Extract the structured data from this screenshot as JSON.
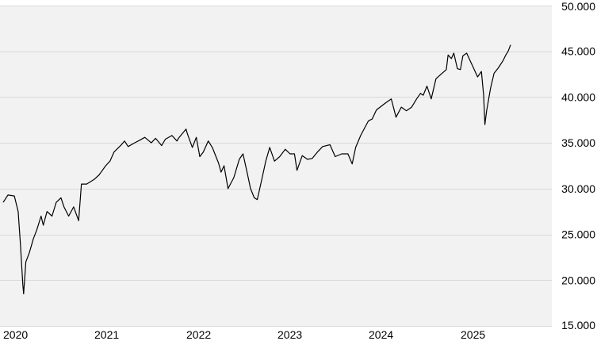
{
  "chart_data": {
    "type": "line",
    "title": "",
    "xlabel": "",
    "ylabel": "",
    "x_tick_labels": [
      "2020",
      "2021",
      "2022",
      "2023",
      "2024",
      "2025"
    ],
    "y_tick_labels": [
      "15.000",
      "20.000",
      "25.000",
      "30.000",
      "35.000",
      "40.000",
      "45.000",
      "50.000"
    ],
    "y_ticks": [
      15000,
      20000,
      25000,
      30000,
      35000,
      40000,
      45000,
      50000
    ],
    "ylim": [
      15000,
      50000
    ],
    "xlim": [
      "2020-01-01",
      "2025-12-31"
    ],
    "grid": "horizontal",
    "legend": "none",
    "colors": {
      "line": "#000000",
      "plot_bg": "#f2f2f2",
      "grid": "#d9d9d9",
      "tick_text": "#000000"
    },
    "series": [
      {
        "x": [
          "2020-01-01",
          "2020-01-20",
          "2020-02-15",
          "2020-03-01",
          "2020-03-10",
          "2020-03-20",
          "2020-03-23",
          "2020-04-01",
          "2020-04-15",
          "2020-05-01",
          "2020-05-15",
          "2020-06-01",
          "2020-06-10",
          "2020-06-25",
          "2020-07-15",
          "2020-08-01",
          "2020-08-20",
          "2020-09-01",
          "2020-09-20",
          "2020-10-10",
          "2020-10-30",
          "2020-11-10",
          "2020-12-01",
          "2020-12-31",
          "2021-01-20",
          "2021-02-15",
          "2021-03-04",
          "2021-03-20",
          "2021-04-15",
          "2021-05-01",
          "2021-05-15",
          "2021-06-10",
          "2021-07-01",
          "2021-07-20",
          "2021-08-15",
          "2021-09-01",
          "2021-09-25",
          "2021-10-10",
          "2021-11-05",
          "2021-11-25",
          "2021-12-01",
          "2021-12-31",
          "2022-01-05",
          "2022-01-25",
          "2022-02-10",
          "2022-02-24",
          "2022-03-10",
          "2022-03-30",
          "2022-04-15",
          "2022-05-10",
          "2022-05-20",
          "2022-06-01",
          "2022-06-17",
          "2022-07-10",
          "2022-08-01",
          "2022-08-16",
          "2022-09-01",
          "2022-09-15",
          "2022-09-30",
          "2022-10-12",
          "2022-10-30",
          "2022-11-15",
          "2022-12-01",
          "2022-12-20",
          "2023-01-10",
          "2023-02-01",
          "2023-02-20",
          "2023-03-10",
          "2023-03-20",
          "2023-04-10",
          "2023-05-01",
          "2023-05-20",
          "2023-06-10",
          "2023-07-01",
          "2023-07-30",
          "2023-08-20",
          "2023-09-15",
          "2023-10-10",
          "2023-10-27",
          "2023-11-10",
          "2023-11-30",
          "2023-12-31",
          "2024-01-15",
          "2024-02-01",
          "2024-02-20",
          "2024-03-10",
          "2024-03-31",
          "2024-04-19",
          "2024-05-10",
          "2024-05-30",
          "2024-06-20",
          "2024-07-10",
          "2024-07-25",
          "2024-08-05",
          "2024-08-20",
          "2024-09-06",
          "2024-09-25",
          "2024-10-15",
          "2024-11-05",
          "2024-11-12",
          "2024-11-25",
          "2024-12-05",
          "2024-12-19",
          "2024-12-31",
          "2025-01-10",
          "2025-01-25",
          "2025-02-18",
          "2025-03-10",
          "2025-03-25",
          "2025-04-03",
          "2025-04-08",
          "2025-04-15",
          "2025-05-01",
          "2025-05-15",
          "2025-06-01",
          "2025-06-20",
          "2025-07-01",
          "2025-07-10",
          "2025-07-20"
        ],
        "y": [
          28500,
          29300,
          29200,
          27500,
          24000,
          19500,
          18500,
          22000,
          23000,
          24500,
          25500,
          27000,
          26000,
          27500,
          27000,
          28500,
          29000,
          28000,
          27000,
          28000,
          26500,
          30500,
          30500,
          31000,
          31500,
          32500,
          33000,
          34000,
          34700,
          35200,
          34600,
          35000,
          35300,
          35600,
          35000,
          35500,
          34700,
          35400,
          35800,
          35200,
          35500,
          36500,
          36000,
          34500,
          35600,
          33500,
          34000,
          35200,
          34500,
          32800,
          31800,
          32500,
          30000,
          31200,
          33200,
          33800,
          31800,
          30000,
          29000,
          28800,
          31000,
          33000,
          34500,
          33000,
          33500,
          34300,
          33800,
          33800,
          32000,
          33600,
          33200,
          33300,
          34000,
          34600,
          34800,
          33500,
          33800,
          33800,
          32700,
          34500,
          35800,
          37400,
          37600,
          38600,
          39000,
          39400,
          39800,
          37800,
          38900,
          38500,
          38900,
          39800,
          40400,
          40200,
          41200,
          39800,
          42000,
          42500,
          43000,
          44600,
          44200,
          44800,
          43100,
          43000,
          44500,
          44800,
          43400,
          42200,
          42800,
          40200,
          37000,
          38500,
          41000,
          42600,
          43200,
          44000,
          44600,
          45000,
          45700
        ]
      }
    ]
  }
}
